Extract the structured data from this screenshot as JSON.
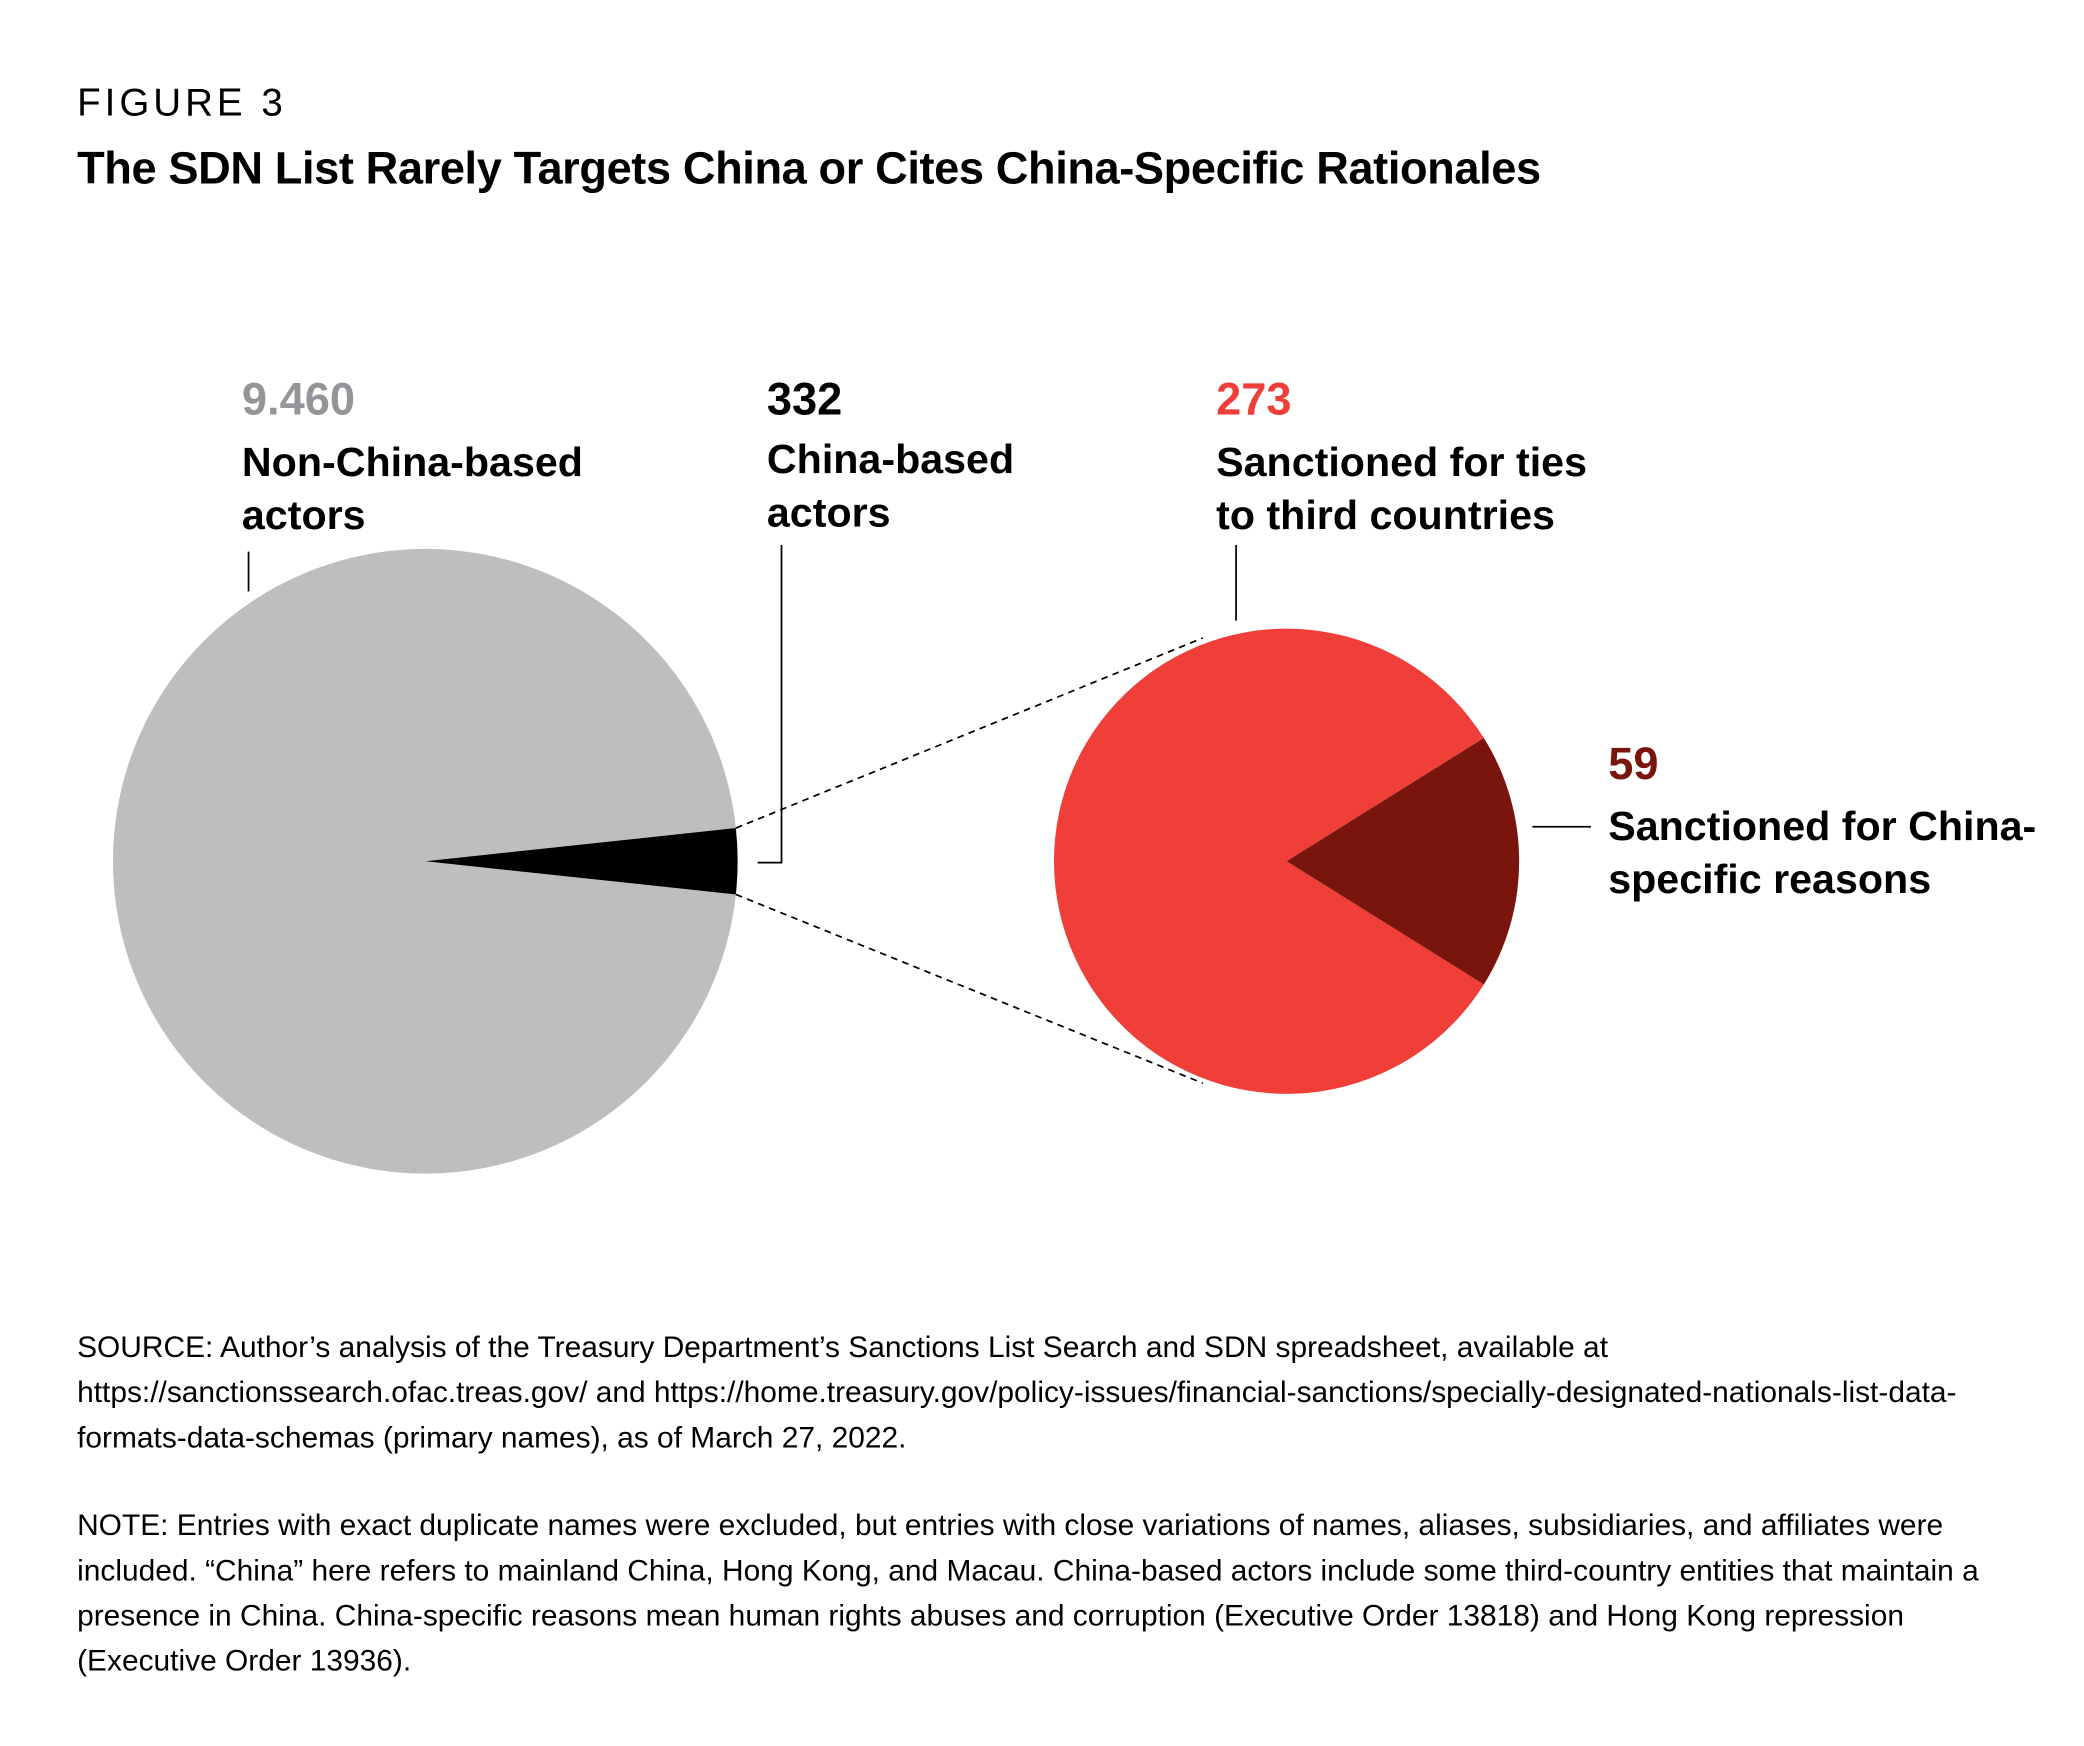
{
  "label": "FIGURE 3",
  "title": "The SDN List Rarely Targets China or Cites China-Specific Rationales",
  "chart_data": [
    {
      "type": "pie",
      "categories": [
        "Non-China-based actors",
        "China-based actors"
      ],
      "values": [
        9460,
        332
      ],
      "value_labels": [
        "9.460",
        "332"
      ],
      "colors": [
        "#bcbec0",
        "#000000"
      ]
    },
    {
      "type": "pie",
      "categories": [
        "Sanctioned for ties to third countries",
        "Sanctioned for China-specific reasons"
      ],
      "values": [
        273,
        59
      ],
      "value_labels": [
        "273",
        "59"
      ],
      "colors": [
        "#ef3f38",
        "#7a150d"
      ]
    }
  ],
  "source": "SOURCE: Author’s analysis of the Treasury Department’s Sanctions List Search and SDN spreadsheet, available at https://sanctionssearch.ofac.treas.gov/ and https://home.treasury.gov/policy-issues/financial-sanctions/specially-designated-nationals-list-data-formats-data-schemas (primary names), as of March 27, 2022.",
  "note": "NOTE: Entries with exact duplicate names were excluded, but entries with close variations of names, aliases, subsidiaries, and affiliates were included. “China” here refers to mainland China, Hong Kong, and Macau. China-based actors include some third-country entities that maintain a presence in China. China-specific reasons mean human rights abuses and corruption (Executive Order 13818) and Hong Kong repression (Executive Order 13936)."
}
